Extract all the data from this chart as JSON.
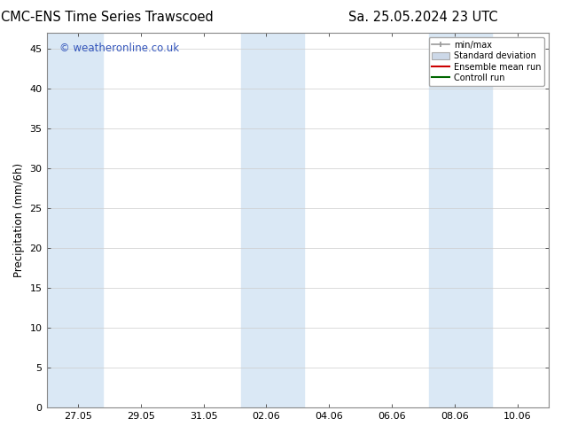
{
  "title_left": "CMC-ENS Time Series Trawscoed",
  "title_right": "Sa. 25.05.2024 23 UTC",
  "ylabel": "Precipitation (mm/6h)",
  "watermark": "© weatheronline.co.uk",
  "watermark_color": "#3355bb",
  "ymin": 0,
  "ymax": 47,
  "yticks": [
    0,
    5,
    10,
    15,
    20,
    25,
    30,
    35,
    40,
    45
  ],
  "bg_color": "#ffffff",
  "plot_bg": "#ffffff",
  "band_color": "#dae8f5",
  "xtick_labels": [
    "27.05",
    "29.05",
    "31.05",
    "02.06",
    "04.06",
    "06.06",
    "08.06",
    "10.06"
  ],
  "x_tick_positions": [
    1,
    3,
    5,
    7,
    9,
    11,
    13,
    15
  ],
  "x_min": 0,
  "x_max": 16,
  "band_ranges": [
    [
      0,
      1.8
    ],
    [
      6.2,
      8.2
    ],
    [
      12.2,
      14.2
    ]
  ],
  "legend_labels": [
    "min/max",
    "Standard deviation",
    "Ensemble mean run",
    "Controll run"
  ],
  "title_fontsize": 10.5,
  "tick_fontsize": 8,
  "ylabel_fontsize": 8.5,
  "watermark_fontsize": 8.5
}
